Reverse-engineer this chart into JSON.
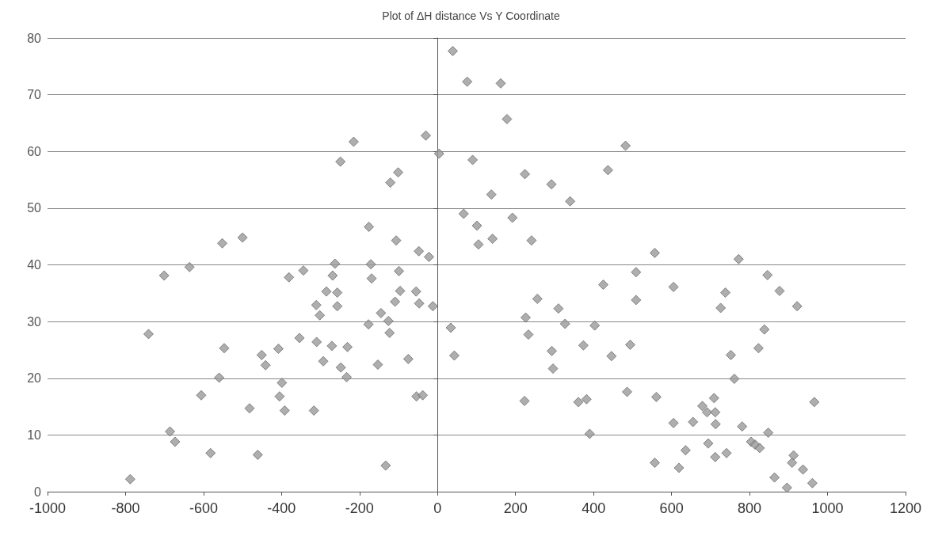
{
  "chart_data": {
    "type": "scatter",
    "title": "Plot of ΔH distance Vs Y Coordinate",
    "x": [
      -788,
      -741,
      -701,
      -686,
      -673,
      -636,
      -552,
      -500,
      -547,
      -560,
      -606,
      -582,
      -482,
      -461,
      -451,
      -441,
      -408,
      -399,
      -405,
      -392,
      -381,
      -344,
      -354,
      -317,
      -310,
      -311,
      -302,
      -293,
      -285,
      -269,
      -271,
      -263,
      -257,
      -257,
      -248,
      -233,
      -231,
      -249,
      -215,
      -176,
      -171,
      -169,
      -177,
      -153,
      -145,
      -126,
      -123,
      -133,
      -121,
      -101,
      -106,
      -109,
      -99,
      -96,
      -75,
      -55,
      -47,
      -54,
      -38,
      -48,
      -22,
      -30,
      -12,
      4,
      39,
      76,
      162,
      178,
      90,
      67,
      101,
      105,
      138,
      141,
      192,
      224,
      241,
      292,
      340,
      437,
      34,
      43,
      256,
      226,
      233,
      223,
      310,
      327,
      293,
      296,
      374,
      361,
      382,
      390,
      403,
      425,
      446,
      482,
      557,
      509,
      509,
      605,
      494,
      486,
      561,
      557,
      605,
      619,
      636,
      655,
      679,
      691,
      709,
      712,
      713,
      694,
      712,
      741,
      738,
      726,
      772,
      752,
      761,
      781,
      804,
      814,
      826,
      848,
      823,
      838,
      846,
      877,
      922,
      864,
      896,
      913,
      909,
      937,
      961,
      966
    ],
    "values": [
      2.2,
      27.8,
      38.1,
      10.6,
      8.8,
      39.6,
      43.8,
      44.8,
      25.3,
      20.1,
      17,
      6.8,
      14.7,
      6.5,
      24.1,
      22.3,
      25.2,
      19.2,
      16.8,
      14.3,
      37.8,
      39,
      27.1,
      14.3,
      26.4,
      32.9,
      31.1,
      23,
      35.3,
      38.1,
      25.7,
      40.2,
      35.1,
      32.7,
      21.9,
      20.2,
      25.5,
      58.2,
      61.7,
      46.7,
      40.1,
      37.6,
      29.5,
      22.4,
      31.5,
      30.1,
      28,
      4.6,
      54.5,
      56.3,
      44.3,
      33.5,
      38.9,
      35.4,
      23.4,
      35.3,
      33.2,
      16.8,
      17,
      42.4,
      41.4,
      62.8,
      32.7,
      59.6,
      77.7,
      72.3,
      72,
      65.7,
      58.5,
      49,
      46.9,
      43.6,
      52.4,
      44.6,
      48.3,
      56,
      44.3,
      54.2,
      51.2,
      56.7,
      28.9,
      24,
      34,
      30.7,
      27.7,
      16,
      32.3,
      29.6,
      24.8,
      21.7,
      25.8,
      15.8,
      16.3,
      10.2,
      29.3,
      36.5,
      23.9,
      61,
      42.1,
      38.7,
      33.8,
      36.1,
      25.9,
      17.6,
      16.7,
      5.1,
      12.1,
      4.2,
      7.3,
      12.3,
      15.1,
      14,
      16.5,
      14,
      11.9,
      8.5,
      6.1,
      6.8,
      35.1,
      32.4,
      41,
      24.1,
      19.9,
      11.5,
      8.8,
      8.3,
      7.7,
      10.4,
      25.3,
      28.6,
      38.2,
      35.4,
      32.7,
      2.5,
      0.7,
      6.4,
      5.1,
      3.9,
      1.5,
      15.8
    ],
    "color": "#9a9a9a",
    "marker": "diamond",
    "xlim": [
      -1000,
      1200
    ],
    "xticks": [
      -1000,
      -800,
      -600,
      -400,
      -200,
      0,
      200,
      400,
      600,
      800,
      1000,
      1200
    ],
    "ylim": [
      0,
      80
    ],
    "yticks": [
      0,
      10,
      20,
      30,
      40,
      50,
      60,
      70,
      80
    ],
    "grid": "y"
  }
}
